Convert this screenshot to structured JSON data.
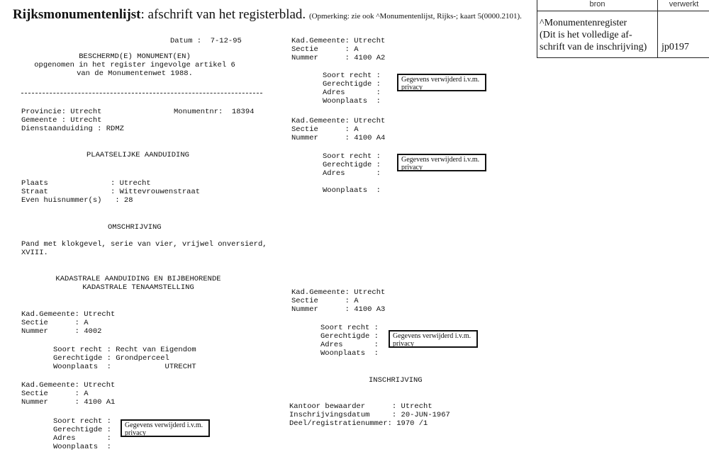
{
  "header": {
    "title_bold": "Rijksmonumentenlijst",
    "title_rest": ": afschrift van het registerblad.",
    "note": "(Opmerking: zie ook ^Monumentenlijst, Rijks-; kaart 5(0000.2101)."
  },
  "sidebox": {
    "col1": "bron",
    "col2": "verwerkt",
    "source": "^Monumentenregister\n(Dit is het volledige af-\nschrift van de inschrijving)",
    "code": "jp0197"
  },
  "left": {
    "datum": "Datum :  7-12-95",
    "heading": "BESCHERMD(E) MONUMENT(EN)\nopgenomen in het register ingevolge artikel 6\nvan de Monumentenwet 1988.",
    "provincie": "Provincie: Utrecht\nGemeente : Utrecht\nDienstaanduiding : RDMZ",
    "monumentnr": "Monumentnr:  18394",
    "plaatselijk_title": "PLAATSELIJKE AANDUIDING",
    "plaatselijk": "Plaats              : Utrecht\nStraat              : Wittevrouwenstraat\nEven huisnummer(s)   : 28",
    "omschrijving_title": "OMSCHRIJVING",
    "omschrijving": "Pand met klokgevel, serie van vier, vrijwel onversierd,\nXVIII.",
    "kadastraal_title": "KADASTRALE AANDUIDING EN BIJBEHORENDE\nKADASTRALE TENAAMSTELLING",
    "kad1": "Kad.Gemeente: Utrecht\nSectie      : A\nNummer      : 4002",
    "kad1_detail": "Soort recht : Recht van Eigendom\nGerechtigde : Grondperceel\nWoonplaats  :            UTRECHT",
    "kad2": "Kad.Gemeente: Utrecht\nSectie      : A\nNummer      : 4100 A1",
    "kad2_detail": "Soort recht :\nGerechtigde :\nAdres       :\nWoonplaats  :"
  },
  "right": {
    "kad3": "Kad.Gemeente: Utrecht\nSectie      : A\nNummer      : 4100 A2",
    "kad3_detail": "Soort recht :\nGerechtigde :\nAdres       :\nWoonplaats  :",
    "kad4": "Kad.Gemeente: Utrecht\nSectie      : A\nNummer      : 4100 A4",
    "kad4_detail": "Soort recht :\nGerechtigde :\nAdres       :\n\nWoonplaats  :",
    "kad5": "Kad.Gemeente: Utrecht\nSectie      : A\nNummer      : 4100 A3",
    "kad5_detail": "Soort recht :\nGerechtigde :\nAdres       :\nWoonplaats  :",
    "inschrijving_title": "INSCHRIJVING",
    "inschrijving": "Kantoor bewaarder      : Utrecht\nInschrijvingsdatum     : 20-JUN-1967\nDeel/registratienummer: 1970 /1"
  },
  "privacy": "Gegevens verwijderd i.v.m.\nprivacy"
}
